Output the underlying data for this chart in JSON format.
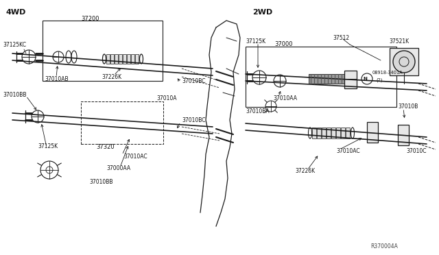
{
  "bg_color": "#ffffff",
  "line_color": "#1a1a1a",
  "label_4wd": "4WD",
  "label_2wd": "2WD",
  "ref_code": "R370004A",
  "fig_width": 6.4,
  "fig_height": 3.72,
  "dpi": 100,
  "gray": "#888888",
  "light_gray": "#cccccc",
  "mid_gray": "#aaaaaa"
}
